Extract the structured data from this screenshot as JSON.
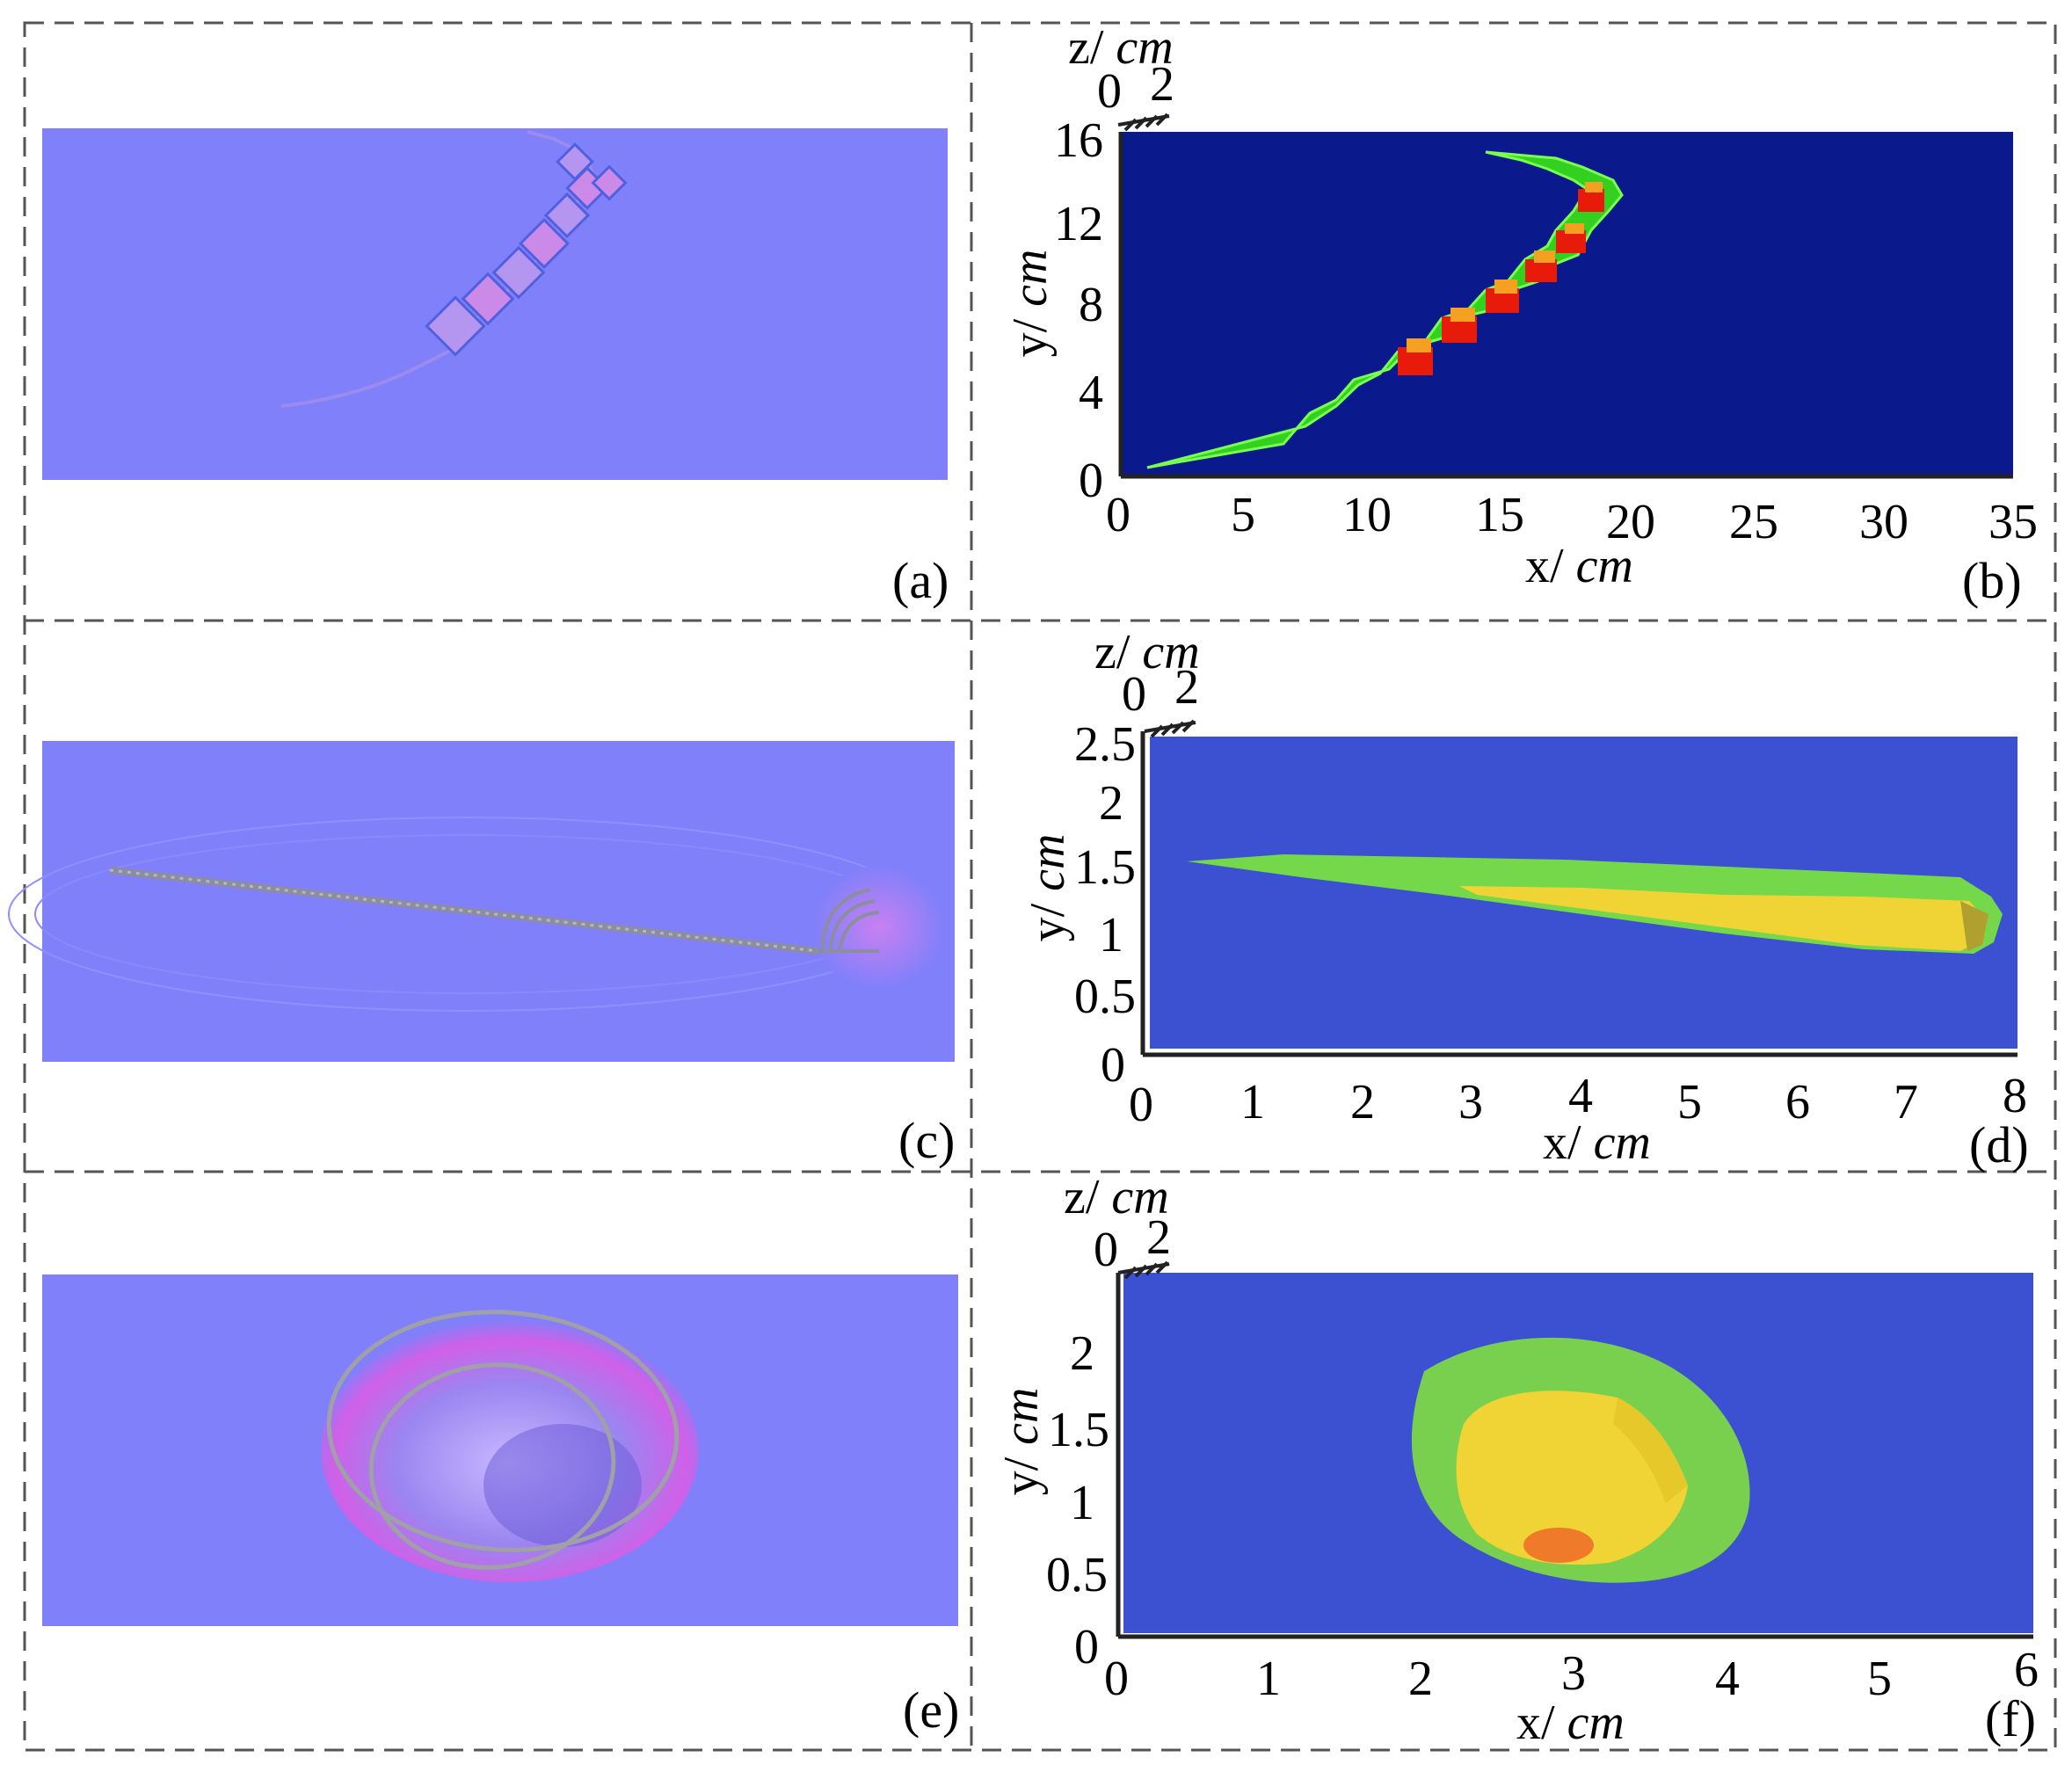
{
  "panels": [
    {
      "id": "a",
      "label": "(a)"
    },
    {
      "id": "b",
      "label": "(b)",
      "x_label": "x/",
      "x_unit": "cm",
      "y_label": "y/",
      "y_unit": "cm",
      "z_label": "z/",
      "z_unit": "cm",
      "x_ticks": [
        "0",
        "5",
        "10",
        "15",
        "20",
        "25",
        "30",
        "35"
      ],
      "y_ticks": [
        "0",
        "4",
        "8",
        "12",
        "16"
      ],
      "z_ticks": [
        "0",
        "2"
      ]
    },
    {
      "id": "c",
      "label": "(c)"
    },
    {
      "id": "d",
      "label": "(d)",
      "x_label": "x/",
      "x_unit": "cm",
      "y_label": "y/",
      "y_unit": "cm",
      "z_label": "z/",
      "z_unit": "cm",
      "x_ticks": [
        "0",
        "1",
        "2",
        "3",
        "4",
        "5",
        "6",
        "7",
        "8"
      ],
      "y_ticks": [
        "0",
        "0.5",
        "1",
        "1.5",
        "2",
        "2.5"
      ],
      "z_ticks": [
        "0",
        "2"
      ]
    },
    {
      "id": "e",
      "label": "(e)"
    },
    {
      "id": "f",
      "label": "(f)",
      "x_label": "x/",
      "x_unit": "cm",
      "y_label": "y/",
      "y_unit": "cm",
      "z_label": "z/",
      "z_unit": "cm",
      "x_ticks": [
        "0",
        "1",
        "2",
        "3",
        "4",
        "5",
        "6"
      ],
      "y_ticks": [
        "0",
        "0.5",
        "1",
        "1.5",
        "2"
      ],
      "z_ticks": [
        "0",
        "2"
      ]
    }
  ],
  "colors": {
    "normal_map": "#8080fa",
    "plot_bg_dark": "#0a1a8c",
    "plot_bg": "#3c50d2",
    "green": "#7ae05a",
    "yellow": "#f2d834",
    "orange": "#f07a2a",
    "red": "#e21e10"
  }
}
